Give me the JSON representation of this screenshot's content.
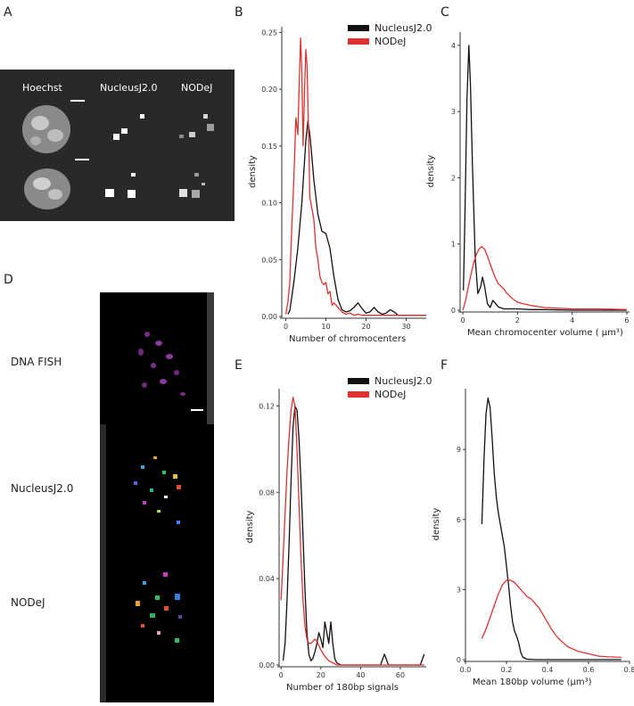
{
  "panel_letters": {
    "A": "A",
    "B": "B",
    "C": "C",
    "D": "D",
    "E": "E",
    "F": "F"
  },
  "panelA": {
    "labels": [
      "Hoechst",
      "NucleusJ2.0",
      "NODeJ"
    ]
  },
  "panelD": {
    "labels": [
      "DNA FISH",
      "NucleusJ2.0",
      "NODeJ"
    ]
  },
  "legend": [
    "NucleusJ2.0",
    "NODeJ"
  ],
  "colors": {
    "NucleusJ2.0": "#111111",
    "NODeJ": "#e03030"
  },
  "chart_data": [
    {
      "id": "B",
      "type": "line",
      "xlabel": "Number of chromocenters",
      "ylabel": "density",
      "xlim": [
        -1,
        35
      ],
      "ylim": [
        0,
        0.255
      ],
      "xticks": [
        0,
        10,
        20,
        30
      ],
      "xtick_labels": [
        "0",
        "10",
        "20",
        "30"
      ],
      "yticks": [
        0,
        0.05,
        0.1,
        0.15,
        0.2,
        0.25
      ],
      "ytick_labels": [
        "0.00",
        "0.05",
        "0.10",
        "0.15",
        "0.20",
        "0.25"
      ],
      "legend": true,
      "series": [
        {
          "name": "NucleusJ2.0",
          "x": [
            0.5,
            1,
            2,
            3,
            4,
            5,
            5.5,
            6,
            6.5,
            7,
            8,
            9,
            10,
            11,
            12,
            13,
            14,
            15,
            16,
            17,
            18,
            19,
            20,
            21,
            22,
            23,
            24,
            25,
            26,
            27,
            28,
            29,
            30,
            32,
            35
          ],
          "y": [
            0.002,
            0.005,
            0.03,
            0.06,
            0.1,
            0.155,
            0.172,
            0.16,
            0.14,
            0.12,
            0.09,
            0.075,
            0.073,
            0.06,
            0.035,
            0.015,
            0.006,
            0.004,
            0.005,
            0.008,
            0.012,
            0.007,
            0.003,
            0.004,
            0.008,
            0.004,
            0.002,
            0.003,
            0.006,
            0.004,
            0.001,
            0.001,
            0.001,
            0.001,
            0.001
          ]
        },
        {
          "name": "NODeJ",
          "x": [
            0,
            0.5,
            1,
            1.5,
            2,
            2.5,
            3,
            3.3,
            3.7,
            4,
            4.3,
            4.7,
            5,
            5.3,
            5.7,
            6,
            6.5,
            7,
            7.5,
            8,
            8.5,
            9,
            9.5,
            10,
            10.5,
            11,
            11.5,
            12,
            13,
            14,
            15,
            16,
            17,
            18,
            19,
            20,
            22,
            25,
            30,
            35
          ],
          "y": [
            0.002,
            0.012,
            0.03,
            0.08,
            0.12,
            0.175,
            0.16,
            0.2,
            0.245,
            0.215,
            0.15,
            0.2,
            0.235,
            0.22,
            0.16,
            0.105,
            0.095,
            0.085,
            0.06,
            0.05,
            0.035,
            0.03,
            0.028,
            0.03,
            0.02,
            0.022,
            0.01,
            0.012,
            0.008,
            0.004,
            0.002,
            0.003,
            0.001,
            0.002,
            0.001,
            0.001,
            0.001,
            0.001,
            0.001,
            0.001
          ]
        }
      ]
    },
    {
      "id": "C",
      "type": "line",
      "xlabel": "Mean chromocenter volume ( μm³)",
      "ylabel": "density",
      "xlim": [
        -0.1,
        6.1
      ],
      "ylim": [
        0,
        4.2
      ],
      "xticks": [
        0,
        2,
        4,
        6
      ],
      "xtick_labels": [
        "0",
        "2",
        "4",
        "6"
      ],
      "yticks": [
        0,
        1,
        2,
        3,
        4
      ],
      "ytick_labels": [
        "0",
        "1",
        "2",
        "3",
        "4"
      ],
      "legend": false,
      "series": [
        {
          "name": "NucleusJ2.0",
          "x": [
            0.02,
            0.08,
            0.15,
            0.22,
            0.28,
            0.35,
            0.45,
            0.55,
            0.65,
            0.72,
            0.8,
            0.9,
            1.0,
            1.1,
            1.3,
            1.5,
            2.0,
            2.5,
            3.0,
            4.0,
            6.0
          ],
          "y": [
            0.3,
            1.5,
            3.2,
            4.0,
            3.4,
            2.2,
            0.8,
            0.25,
            0.35,
            0.5,
            0.35,
            0.1,
            0.04,
            0.15,
            0.05,
            0.02,
            0.02,
            0.01,
            0.01,
            0.0,
            0.0
          ]
        },
        {
          "name": "NODeJ",
          "x": [
            0.0,
            0.1,
            0.2,
            0.3,
            0.4,
            0.5,
            0.6,
            0.7,
            0.8,
            0.9,
            1.0,
            1.1,
            1.2,
            1.3,
            1.4,
            1.5,
            1.6,
            1.8,
            2.0,
            2.2,
            2.5,
            3.0,
            3.5,
            4.0,
            5.0,
            6.0
          ],
          "y": [
            0.0,
            0.15,
            0.35,
            0.55,
            0.72,
            0.85,
            0.93,
            0.96,
            0.92,
            0.82,
            0.7,
            0.58,
            0.48,
            0.4,
            0.36,
            0.32,
            0.26,
            0.18,
            0.12,
            0.1,
            0.07,
            0.04,
            0.03,
            0.02,
            0.02,
            0.01
          ]
        }
      ]
    },
    {
      "id": "E",
      "type": "line",
      "xlabel": "Number of  180bp signals",
      "ylabel": "density",
      "xlim": [
        -1,
        73
      ],
      "ylim": [
        0,
        0.128
      ],
      "xticks": [
        0,
        20,
        40,
        60
      ],
      "xtick_labels": [
        "0",
        "20",
        "40",
        "60"
      ],
      "yticks": [
        0,
        0.04,
        0.08,
        0.12
      ],
      "ytick_labels": [
        "0.00",
        "0.04",
        "0.08",
        "0.12"
      ],
      "legend": true,
      "series": [
        {
          "name": "NucleusJ2.0",
          "x": [
            1,
            2,
            3,
            4,
            5,
            6,
            7,
            8,
            9,
            10,
            11,
            12,
            13,
            14,
            15,
            16,
            17,
            18,
            19,
            20,
            21,
            22,
            23,
            24,
            25,
            26,
            27,
            28,
            30,
            35,
            40,
            45,
            50,
            52,
            54,
            56,
            60,
            65,
            70,
            72
          ],
          "y": [
            0.002,
            0.01,
            0.03,
            0.055,
            0.085,
            0.11,
            0.12,
            0.118,
            0.105,
            0.085,
            0.06,
            0.035,
            0.015,
            0.005,
            0.002,
            0.003,
            0.006,
            0.01,
            0.015,
            0.012,
            0.008,
            0.02,
            0.015,
            0.01,
            0.02,
            0.01,
            0.003,
            0.001,
            0.0,
            0.0,
            0.0,
            0.0,
            0.0,
            0.005,
            0.0,
            0.0,
            0.0,
            0.0,
            0.0,
            0.005
          ]
        },
        {
          "name": "NODeJ",
          "x": [
            0,
            1,
            2,
            3,
            4,
            5,
            6,
            7,
            8,
            9,
            10,
            11,
            12,
            13,
            14,
            15,
            16,
            17,
            18,
            19,
            20,
            22,
            24,
            26,
            28,
            30,
            40,
            50,
            60,
            72
          ],
          "y": [
            0.03,
            0.05,
            0.07,
            0.09,
            0.105,
            0.118,
            0.124,
            0.12,
            0.1,
            0.075,
            0.05,
            0.03,
            0.018,
            0.012,
            0.01,
            0.01,
            0.011,
            0.012,
            0.011,
            0.009,
            0.007,
            0.004,
            0.002,
            0.001,
            0.0,
            0.0,
            0.0,
            0.0,
            0.0,
            0.0
          ]
        }
      ]
    },
    {
      "id": "F",
      "type": "line",
      "xlabel": "Mean 180bp volume (μm³)",
      "ylabel": "density",
      "xlim": [
        0.0,
        0.8
      ],
      "ylim": [
        0,
        11.6
      ],
      "xticks": [
        0.0,
        0.2,
        0.4,
        0.6,
        0.8
      ],
      "xtick_labels": [
        "0.0",
        "0.2",
        "0.4",
        "0.6",
        "0.8"
      ],
      "yticks": [
        0,
        3,
        6,
        9
      ],
      "ytick_labels": [
        "0",
        "3",
        "6",
        "9"
      ],
      "legend": false,
      "series": [
        {
          "name": "NucleusJ2.0",
          "x": [
            0.08,
            0.09,
            0.1,
            0.11,
            0.12,
            0.13,
            0.14,
            0.15,
            0.16,
            0.17,
            0.18,
            0.19,
            0.2,
            0.21,
            0.22,
            0.23,
            0.24,
            0.25,
            0.26,
            0.27,
            0.28,
            0.3,
            0.35,
            0.4,
            0.5,
            0.6,
            0.7,
            0.76
          ],
          "y": [
            5.8,
            8.5,
            10.5,
            11.2,
            10.8,
            9.5,
            8.0,
            7.0,
            6.3,
            5.8,
            5.3,
            4.8,
            4.0,
            3.2,
            2.3,
            1.6,
            1.2,
            1.0,
            0.7,
            0.3,
            0.1,
            0.02,
            0.0,
            0.0,
            0.0,
            0.0,
            0.0,
            0.0
          ]
        },
        {
          "name": "NODeJ",
          "x": [
            0.08,
            0.1,
            0.12,
            0.14,
            0.16,
            0.18,
            0.2,
            0.22,
            0.24,
            0.26,
            0.28,
            0.3,
            0.32,
            0.34,
            0.36,
            0.38,
            0.4,
            0.42,
            0.44,
            0.46,
            0.48,
            0.5,
            0.55,
            0.6,
            0.65,
            0.7,
            0.76
          ],
          "y": [
            0.9,
            1.3,
            1.8,
            2.3,
            2.8,
            3.2,
            3.4,
            3.4,
            3.3,
            3.1,
            2.9,
            2.7,
            2.6,
            2.4,
            2.2,
            1.9,
            1.6,
            1.3,
            1.05,
            0.85,
            0.7,
            0.55,
            0.35,
            0.25,
            0.15,
            0.12,
            0.1
          ]
        }
      ]
    }
  ]
}
